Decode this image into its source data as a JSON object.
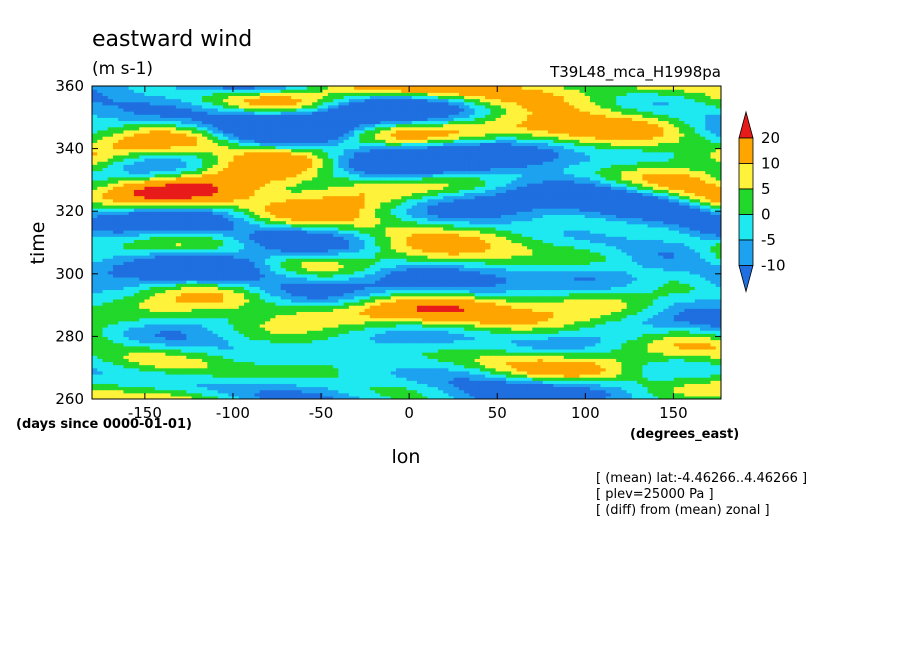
{
  "chart_data": {
    "type": "heatmap",
    "title": "eastward wind",
    "units": "(m s-1)",
    "run_label": "T39L48_mca_H1998pa",
    "xlabel": "lon",
    "ylabel": "time",
    "x_units": "(degrees_east)",
    "y_units": "(days since 0000-01-01)",
    "xlim": [
      -180,
      177
    ],
    "ylim": [
      260,
      360
    ],
    "x_ticks": [
      "-150",
      "-100",
      "-50",
      "0",
      "50",
      "100",
      "150"
    ],
    "x_tick_values": [
      -150,
      -100,
      -50,
      0,
      50,
      100,
      150
    ],
    "y_ticks": [
      "260",
      "280",
      "300",
      "320",
      "340",
      "360"
    ],
    "y_tick_values": [
      260,
      280,
      300,
      320,
      340,
      360
    ],
    "colorbar": {
      "levels": [
        -10,
        -5,
        0,
        5,
        10,
        20
      ],
      "labels": [
        "-10",
        "-5",
        "0",
        "5",
        "10",
        "20"
      ],
      "colors": [
        "#1f6fe0",
        "#1da2f0",
        "#1ee8f0",
        "#21d82b",
        "#fff23a",
        "#ffa500",
        "#e81b1b"
      ]
    },
    "notes": [
      "[ (mean) lat:-4.46266..4.46266 ]",
      "[ plev=25000 Pa ]",
      "[ (diff) from (mean) zonal ]"
    ]
  }
}
